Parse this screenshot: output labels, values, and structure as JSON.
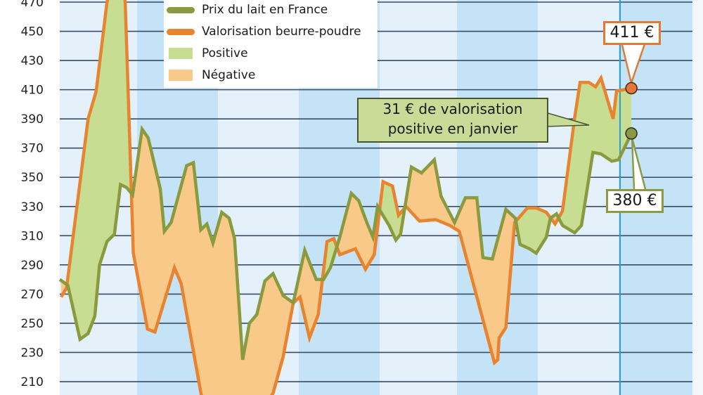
{
  "legend": {
    "items": [
      {
        "label": "Prix du lait en France",
        "kind": "line",
        "color": "#8a9a3e"
      },
      {
        "label": "Valorisation beurre-poudre",
        "kind": "line",
        "color": "#e8832f"
      },
      {
        "label": "Positive",
        "kind": "box",
        "color": "#c6dd92"
      },
      {
        "label": "Négative",
        "kind": "box",
        "color": "#f9c98a"
      }
    ]
  },
  "annotations": {
    "note_line1": "31 € de valorisation",
    "note_line2": "positive en janvier",
    "butter_powder_last": "411 €",
    "milk_price_last": "380 €"
  },
  "chart_data": {
    "type": "line",
    "title": "",
    "xlabel": "",
    "ylabel": "",
    "ylim": [
      201,
      471
    ],
    "yticks": [
      470,
      450,
      430,
      410,
      390,
      370,
      350,
      330,
      310,
      290,
      270,
      250,
      230,
      210
    ],
    "grid": true,
    "legend_position": "top-center",
    "fill_between": {
      "positive_color": "#c6dd92",
      "negative_color": "#f9c98a"
    },
    "series": [
      {
        "name": "Prix du lait en France",
        "color": "#8a9a3e",
        "points": [
          [
            0,
            280
          ],
          [
            1.2,
            276
          ],
          [
            3,
            239
          ],
          [
            4.2,
            243
          ],
          [
            5.2,
            255
          ],
          [
            5.9,
            290
          ],
          [
            7,
            306
          ],
          [
            8.1,
            311
          ],
          [
            9,
            345
          ],
          [
            9.9,
            343
          ],
          [
            10.8,
            338
          ],
          [
            12.2,
            383
          ],
          [
            13.1,
            377
          ],
          [
            14.9,
            342
          ],
          [
            15.5,
            313
          ],
          [
            16.5,
            319
          ],
          [
            18.8,
            358
          ],
          [
            19.8,
            360
          ],
          [
            20.9,
            314
          ],
          [
            21.8,
            318
          ],
          [
            22.7,
            305
          ],
          [
            24,
            326
          ],
          [
            25.1,
            322
          ],
          [
            25.9,
            308
          ],
          [
            27.1,
            225
          ],
          [
            28.1,
            250
          ],
          [
            29.2,
            256
          ],
          [
            30.4,
            279
          ],
          [
            31.6,
            284
          ],
          [
            33.1,
            269
          ],
          [
            34.6,
            264
          ],
          [
            36.3,
            300
          ],
          [
            38,
            280
          ],
          [
            39.1,
            280
          ],
          [
            40.1,
            288
          ],
          [
            41.5,
            309
          ],
          [
            43.2,
            339
          ],
          [
            44.3,
            334
          ],
          [
            45.5,
            319
          ],
          [
            46.4,
            309
          ],
          [
            47.1,
            330
          ],
          [
            48.8,
            317
          ],
          [
            49.8,
            307
          ],
          [
            50.5,
            311
          ],
          [
            52.1,
            357
          ],
          [
            53.6,
            353
          ],
          [
            55.5,
            362
          ],
          [
            56.5,
            337
          ],
          [
            58.5,
            319
          ],
          [
            60.1,
            336
          ],
          [
            61.8,
            336
          ],
          [
            62.7,
            295
          ],
          [
            64.1,
            294
          ],
          [
            66.1,
            328
          ],
          [
            67.5,
            322
          ],
          [
            68.2,
            304
          ],
          [
            69.6,
            301
          ],
          [
            70.6,
            298
          ],
          [
            72.1,
            309
          ],
          [
            72.7,
            322
          ],
          [
            73.6,
            325
          ],
          [
            74.5,
            317
          ],
          [
            76.3,
            312
          ],
          [
            77.3,
            317
          ],
          [
            79,
            367
          ],
          [
            80.2,
            366
          ],
          [
            81.8,
            361
          ],
          [
            82.8,
            362
          ],
          [
            84.7,
            380
          ]
        ]
      },
      {
        "name": "Valorisation beurre-poudre",
        "color": "#e8832f",
        "points": [
          [
            0.2,
            268
          ],
          [
            1,
            274
          ],
          [
            4.2,
            390
          ],
          [
            5.4,
            409
          ],
          [
            7,
            470
          ],
          [
            8,
            490
          ],
          [
            9.2,
            490
          ],
          [
            9.7,
            470
          ],
          [
            10.2,
            399
          ],
          [
            10.9,
            298
          ],
          [
            13,
            246
          ],
          [
            14.1,
            244
          ],
          [
            17,
            288
          ],
          [
            18,
            277
          ],
          [
            21,
            200
          ],
          [
            22,
            198
          ],
          [
            31,
            198
          ],
          [
            31.6,
            202
          ],
          [
            33.1,
            227
          ],
          [
            34.6,
            264
          ],
          [
            35.6,
            268
          ],
          [
            37,
            240
          ],
          [
            38.3,
            256
          ],
          [
            39.6,
            306
          ],
          [
            40.6,
            308
          ],
          [
            41.5,
            297
          ],
          [
            43.8,
            301
          ],
          [
            45.3,
            287
          ],
          [
            46.6,
            297
          ],
          [
            47.9,
            347
          ],
          [
            49.3,
            344
          ],
          [
            50.2,
            324
          ],
          [
            51.3,
            330
          ],
          [
            53.3,
            320
          ],
          [
            55.7,
            321
          ],
          [
            57.8,
            317
          ],
          [
            59.2,
            313
          ],
          [
            64.4,
            223
          ],
          [
            64.9,
            225
          ],
          [
            65.1,
            240
          ],
          [
            66.1,
            247
          ],
          [
            67.4,
            319
          ],
          [
            69.3,
            329
          ],
          [
            70.6,
            329
          ],
          [
            72.1,
            326
          ],
          [
            73.4,
            318
          ],
          [
            74.5,
            327
          ],
          [
            76.3,
            391
          ],
          [
            77.1,
            415
          ],
          [
            78.4,
            415
          ],
          [
            79.4,
            412
          ],
          [
            80.2,
            418
          ],
          [
            82,
            390
          ],
          [
            82.5,
            409
          ],
          [
            84.7,
            411
          ]
        ]
      }
    ]
  }
}
